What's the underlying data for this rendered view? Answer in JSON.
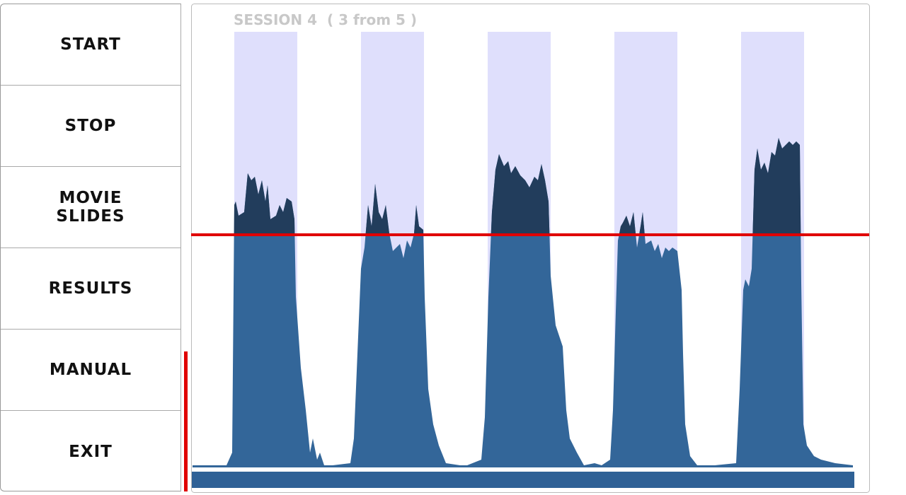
{
  "menu": [
    "START",
    "STOP",
    [
      "MOVIE",
      "SLIDES"
    ],
    "RESULTS",
    "MANUAL",
    "EXIT"
  ],
  "session_label": "SESSION 4  ( 3 from 5 )"
}
